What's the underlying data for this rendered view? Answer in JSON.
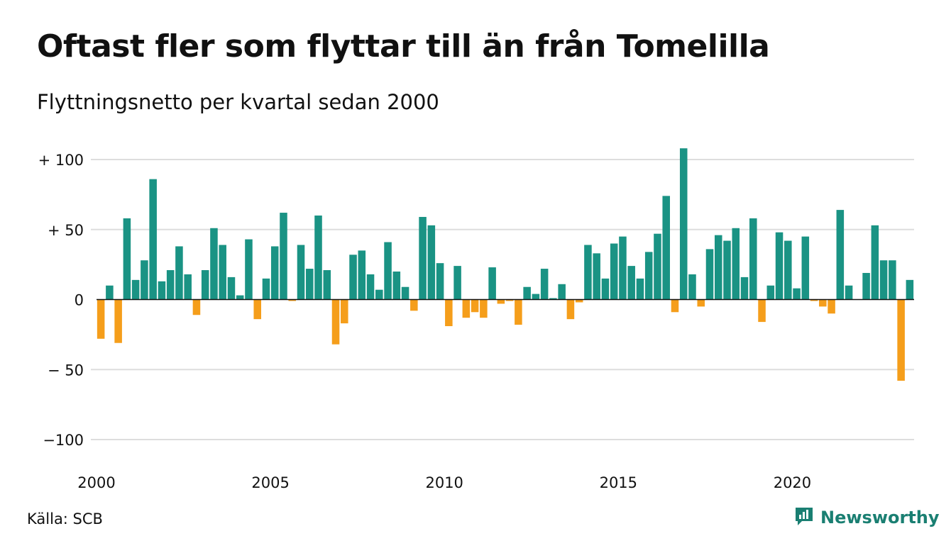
{
  "title": "Oftast fler som flyttar till än från Tomelilla",
  "subtitle": "Flyttningsnetto per kvartal sedan 2000",
  "source": "Källa: SCB",
  "brand": {
    "name": "Newsworthy",
    "icon": "newsworthy-logo-icon"
  },
  "colors": {
    "positive": "#1a9384",
    "negative": "#f59e1b",
    "grid": "#dddddd",
    "text": "#111111"
  },
  "chart_data": {
    "type": "bar",
    "title": "Oftast fler som flyttar till än från Tomelilla",
    "subtitle": "Flyttningsnetto per kvartal sedan 2000",
    "xlabel": "",
    "ylabel": "",
    "ylim": [
      -100,
      100
    ],
    "yticks": [
      {
        "value": 100,
        "label": "+ 100"
      },
      {
        "value": 50,
        "label": "+  50"
      },
      {
        "value": 0,
        "label": "0"
      },
      {
        "value": -50,
        "label": "− 50"
      },
      {
        "value": -100,
        "label": "−100"
      }
    ],
    "xticks": [
      "2000",
      "2005",
      "2010",
      "2015",
      "2020"
    ],
    "grid": true,
    "legend": "none",
    "start": "2000 Q1",
    "frequency": "quarterly",
    "values": [
      -28,
      10,
      -31,
      58,
      14,
      28,
      86,
      13,
      21,
      38,
      18,
      -11,
      21,
      51,
      39,
      16,
      3,
      43,
      -14,
      15,
      38,
      62,
      -1,
      39,
      22,
      60,
      21,
      -32,
      -17,
      32,
      35,
      18,
      7,
      41,
      20,
      9,
      -8,
      59,
      53,
      26,
      -19,
      24,
      -13,
      -9,
      -13,
      23,
      -3,
      -1,
      -18,
      9,
      4,
      22,
      1,
      11,
      -14,
      -2,
      39,
      33,
      15,
      40,
      45,
      24,
      15,
      34,
      47,
      74,
      -9,
      108,
      18,
      -5,
      36,
      46,
      42,
      51,
      16,
      58,
      -16,
      10,
      48,
      42,
      8,
      45,
      -1,
      -5,
      -10,
      64,
      10,
      0,
      19,
      53,
      28,
      28,
      -58,
      14
    ]
  }
}
